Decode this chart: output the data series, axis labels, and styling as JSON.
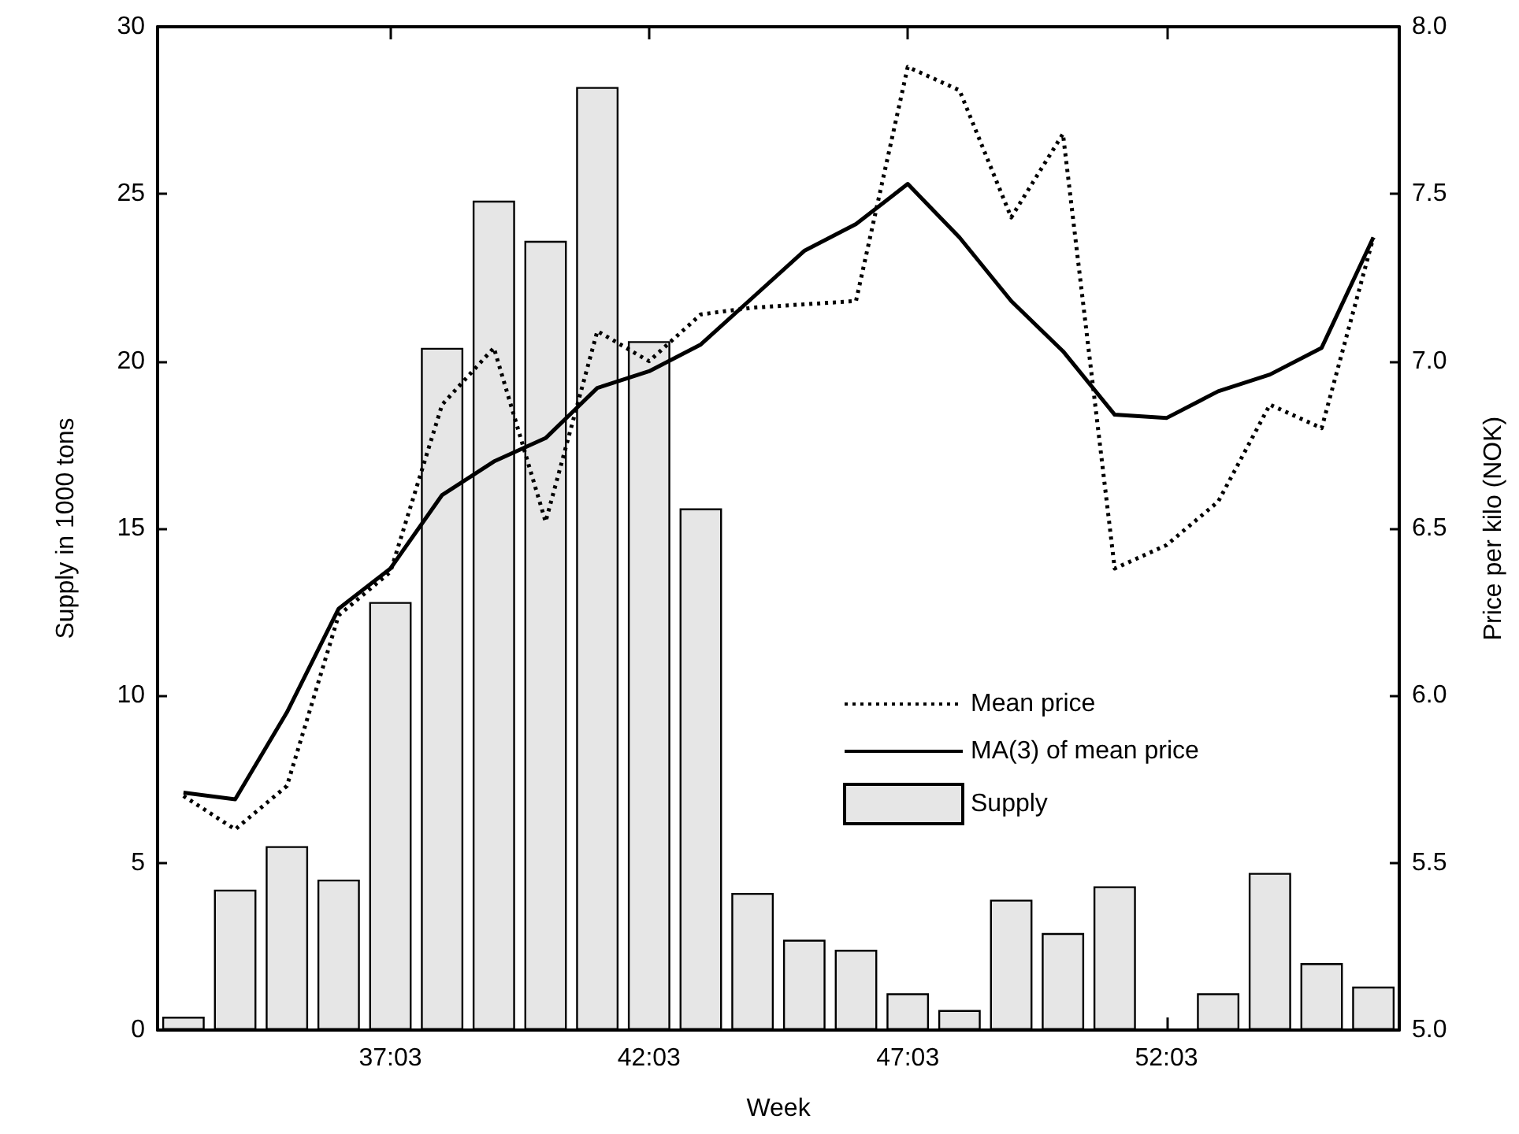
{
  "chart_data": {
    "type": "bar",
    "xlabel": "Week",
    "ylabel": "Supply in 1000 tons",
    "y2label": "Price per kilo (NOK)",
    "categories": [
      null,
      null,
      null,
      null,
      "37:03",
      null,
      null,
      null,
      null,
      "42:03",
      null,
      null,
      null,
      null,
      "47:03",
      null,
      null,
      null,
      null,
      "52:03",
      null,
      null,
      null,
      null
    ],
    "series": [
      {
        "name": "Mean price",
        "type": "line",
        "axis": "y2",
        "color": "#000000",
        "line_style": "dotted",
        "values": [
          5.7,
          5.6,
          5.73,
          6.24,
          6.37,
          6.87,
          7.04,
          6.52,
          7.09,
          7.0,
          7.14,
          7.16,
          7.17,
          7.18,
          7.88,
          7.81,
          7.43,
          7.68,
          6.38,
          6.45,
          6.58,
          6.87,
          6.8,
          7.37
        ]
      },
      {
        "name": "MA(3) of mean price",
        "type": "line",
        "axis": "y2",
        "color": "#000000",
        "line_style": "solid",
        "values": [
          5.71,
          5.69,
          5.95,
          6.26,
          6.38,
          6.6,
          6.7,
          6.77,
          6.92,
          6.97,
          7.05,
          7.19,
          7.33,
          7.41,
          7.53,
          7.37,
          7.18,
          7.03,
          6.84,
          6.83,
          6.91,
          6.96,
          7.04,
          7.37
        ]
      },
      {
        "name": "Supply",
        "axis": "y",
        "color": "#e6e6e6",
        "values": [
          0.4,
          4.2,
          5.5,
          4.5,
          12.8,
          20.4,
          24.8,
          23.6,
          28.2,
          20.6,
          15.6,
          4.1,
          2.7,
          2.4,
          1.1,
          0.6,
          3.9,
          2.9,
          4.3,
          null,
          1.1,
          4.7,
          2.0,
          1.3
        ]
      }
    ],
    "ylim": [
      0,
      30
    ],
    "yticks": [
      0,
      5,
      10,
      15,
      20,
      25,
      30
    ],
    "y2lim": [
      5,
      8
    ],
    "y2ticks": [
      {
        "value": 5,
        "label": "5.0"
      },
      {
        "value": 5.5,
        "label": "5.5"
      },
      {
        "value": 6,
        "label": "6.0"
      },
      {
        "value": 6.5,
        "label": "6.5"
      },
      {
        "value": 7,
        "label": "7.0"
      },
      {
        "value": 7.5,
        "label": "7.5"
      },
      {
        "value": 8,
        "label": "8.0"
      }
    ],
    "grid": false,
    "legend": "right",
    "marker": "none"
  }
}
